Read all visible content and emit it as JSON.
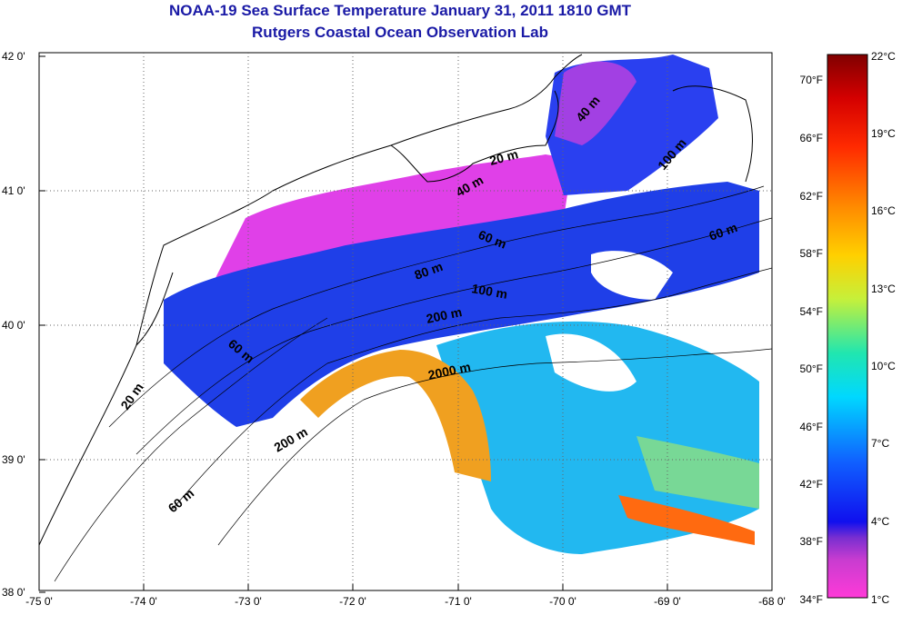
{
  "title": "NOAA-19 Sea Surface Temperature January 31, 2011 1810 GMT",
  "subtitle": "Rutgers Coastal Ocean Observation Lab",
  "lat_ticks": [
    "42 0'",
    "41 0'",
    "40 0'",
    "39 0'",
    "38 0'"
  ],
  "lon_ticks": [
    "-75 0'",
    "-74 0'",
    "-73 0'",
    "-72 0'",
    "-71 0'",
    "-70 0'",
    "-69 0'",
    "-68 0'"
  ],
  "colorbar": {
    "fahrenheit": [
      "70°F",
      "66°F",
      "62°F",
      "58°F",
      "54°F",
      "50°F",
      "46°F",
      "42°F",
      "38°F",
      "34°F"
    ],
    "celsius": [
      "22°C",
      "19°C",
      "16°C",
      "13°C",
      "10°C",
      "7°C",
      "4°C",
      "1°C"
    ]
  },
  "contour_labels": [
    {
      "text": "20 m"
    },
    {
      "text": "40 m"
    },
    {
      "text": "100 m"
    },
    {
      "text": "60 m"
    },
    {
      "text": "80 m"
    },
    {
      "text": "100 m"
    },
    {
      "text": "200 m"
    },
    {
      "text": "2000 m"
    },
    {
      "text": "60 m"
    },
    {
      "text": "20 m"
    },
    {
      "text": "200 m"
    },
    {
      "text": "60 m"
    },
    {
      "text": "40 m"
    },
    {
      "text": "60 m"
    }
  ],
  "colors": {
    "title": "#1a1aa6"
  }
}
